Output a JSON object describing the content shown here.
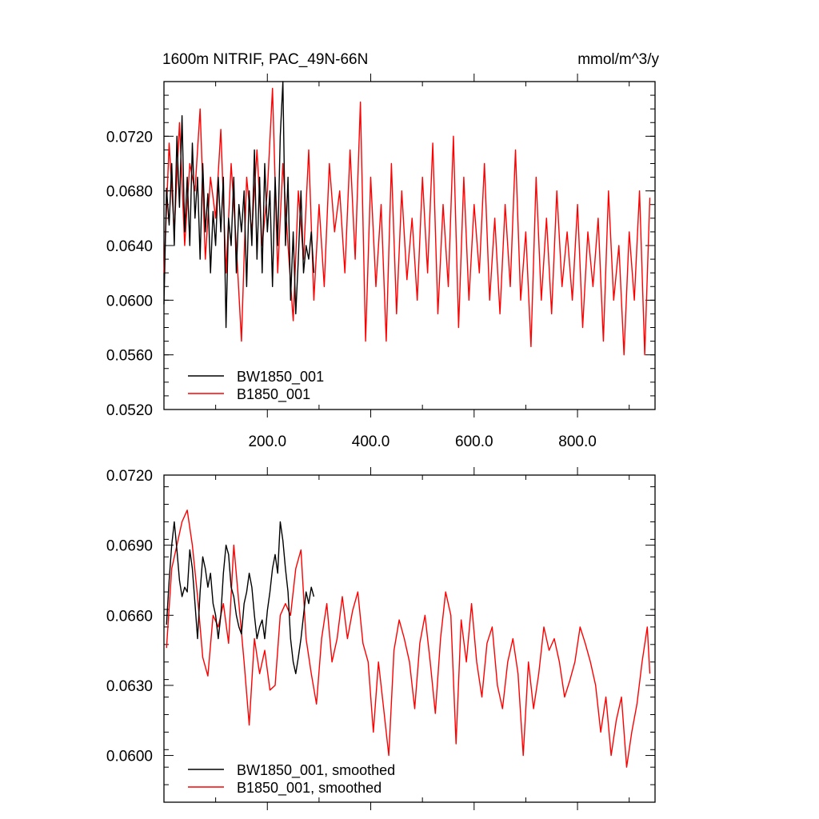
{
  "header": {
    "title": "1600m NITRIF, PAC_49N-66N",
    "units": "mmol/m^3/y"
  },
  "chart_data": [
    {
      "type": "line",
      "title": "1600m NITRIF, PAC_49N-66N",
      "units_label": "mmol/m^3/y",
      "xlabel": "",
      "ylabel": "",
      "xlim": [
        0,
        950
      ],
      "ylim": [
        0.052,
        0.076
      ],
      "x_tick_values": [
        200,
        400,
        600,
        800
      ],
      "x_tick_labels": [
        "200.0",
        "400.0",
        "600.0",
        "800.0"
      ],
      "y_tick_values": [
        0.052,
        0.056,
        0.06,
        0.064,
        0.068,
        0.072
      ],
      "y_tick_labels": [
        "0.0520",
        "0.0560",
        "0.0600",
        "0.0640",
        "0.0680",
        "0.0720"
      ],
      "legend_position": "bottom-left",
      "grid": false,
      "series": [
        {
          "name": "BW1850_001",
          "color": "#000000",
          "x": [
            0,
            5,
            10,
            15,
            20,
            25,
            30,
            35,
            40,
            45,
            50,
            55,
            60,
            65,
            70,
            75,
            80,
            85,
            90,
            95,
            100,
            105,
            110,
            115,
            120,
            125,
            130,
            135,
            140,
            145,
            150,
            155,
            160,
            165,
            170,
            175,
            180,
            185,
            190,
            195,
            200,
            205,
            210,
            215,
            220,
            225,
            230,
            235,
            240,
            245,
            250,
            255,
            260,
            265,
            270,
            275,
            280,
            285,
            290
          ],
          "values": [
            0.0597,
            0.0682,
            0.0655,
            0.07,
            0.064,
            0.072,
            0.0668,
            0.0735,
            0.065,
            0.069,
            0.064,
            0.0715,
            0.066,
            0.069,
            0.063,
            0.07,
            0.065,
            0.0678,
            0.062,
            0.0665,
            0.064,
            0.069,
            0.065,
            0.069,
            0.058,
            0.066,
            0.064,
            0.069,
            0.062,
            0.067,
            0.065,
            0.068,
            0.061,
            0.068,
            0.064,
            0.071,
            0.063,
            0.069,
            0.062,
            0.07,
            0.065,
            0.068,
            0.061,
            0.069,
            0.064,
            0.072,
            0.076,
            0.064,
            0.069,
            0.06,
            0.065,
            0.059,
            0.063,
            0.068,
            0.062,
            0.064,
            0.063,
            0.065,
            0.062
          ]
        },
        {
          "name": "B1850_001",
          "color": "#ff0000",
          "x": [
            0,
            10,
            20,
            30,
            40,
            50,
            60,
            70,
            80,
            90,
            100,
            110,
            120,
            130,
            140,
            150,
            160,
            170,
            180,
            190,
            200,
            210,
            220,
            230,
            240,
            250,
            260,
            270,
            280,
            290,
            300,
            310,
            320,
            330,
            340,
            350,
            360,
            370,
            380,
            390,
            400,
            410,
            420,
            430,
            440,
            450,
            460,
            470,
            480,
            490,
            500,
            510,
            520,
            530,
            540,
            550,
            560,
            570,
            580,
            590,
            600,
            610,
            620,
            630,
            640,
            650,
            660,
            670,
            680,
            690,
            700,
            710,
            720,
            730,
            740,
            750,
            760,
            770,
            780,
            790,
            800,
            810,
            820,
            830,
            840,
            850,
            860,
            870,
            880,
            890,
            900,
            910,
            920,
            930,
            940
          ],
          "values": [
            0.062,
            0.0715,
            0.065,
            0.073,
            0.064,
            0.07,
            0.068,
            0.074,
            0.063,
            0.069,
            0.066,
            0.0725,
            0.062,
            0.07,
            0.064,
            0.057,
            0.069,
            0.065,
            0.071,
            0.064,
            0.068,
            0.0755,
            0.062,
            0.07,
            0.064,
            0.0585,
            0.068,
            0.063,
            0.071,
            0.06,
            0.067,
            0.061,
            0.07,
            0.065,
            0.068,
            0.062,
            0.071,
            0.063,
            0.0745,
            0.057,
            0.069,
            0.061,
            0.067,
            0.057,
            0.07,
            0.059,
            0.068,
            0.0615,
            0.066,
            0.06,
            0.069,
            0.062,
            0.0715,
            0.059,
            0.067,
            0.061,
            0.072,
            0.058,
            0.069,
            0.06,
            0.067,
            0.062,
            0.07,
            0.06,
            0.066,
            0.059,
            0.067,
            0.061,
            0.071,
            0.06,
            0.065,
            0.0566,
            0.069,
            0.06,
            0.066,
            0.059,
            0.068,
            0.061,
            0.065,
            0.06,
            0.067,
            0.058,
            0.065,
            0.061,
            0.066,
            0.057,
            0.068,
            0.06,
            0.064,
            0.056,
            0.065,
            0.06,
            0.068,
            0.056,
            0.0675
          ]
        }
      ]
    },
    {
      "type": "line",
      "title": "",
      "xlabel": "",
      "ylabel": "",
      "xlim": [
        0,
        950
      ],
      "ylim": [
        0.058,
        0.072
      ],
      "y_tick_values": [
        0.06,
        0.063,
        0.066,
        0.069,
        0.072
      ],
      "y_tick_labels": [
        "0.0600",
        "0.0630",
        "0.0660",
        "0.0690",
        "0.0720"
      ],
      "legend_position": "bottom-left",
      "grid": false,
      "series": [
        {
          "name": "BW1850_001, smoothed",
          "color": "#000000",
          "x": [
            5,
            10,
            15,
            20,
            25,
            30,
            35,
            40,
            45,
            50,
            55,
            60,
            65,
            70,
            75,
            80,
            85,
            90,
            95,
            100,
            105,
            110,
            115,
            120,
            125,
            130,
            135,
            140,
            145,
            150,
            155,
            160,
            165,
            170,
            175,
            180,
            185,
            190,
            195,
            200,
            205,
            210,
            215,
            220,
            225,
            230,
            235,
            240,
            245,
            250,
            255,
            260,
            265,
            270,
            275,
            280,
            285,
            290
          ],
          "values": [
            0.0656,
            0.0675,
            0.069,
            0.07,
            0.0688,
            0.0675,
            0.0668,
            0.0672,
            0.067,
            0.0688,
            0.068,
            0.0665,
            0.065,
            0.067,
            0.0685,
            0.068,
            0.0672,
            0.0678,
            0.0665,
            0.066,
            0.065,
            0.066,
            0.0678,
            0.069,
            0.0686,
            0.0672,
            0.0668,
            0.066,
            0.0655,
            0.0652,
            0.0665,
            0.067,
            0.0678,
            0.0672,
            0.066,
            0.065,
            0.0655,
            0.0658,
            0.065,
            0.0662,
            0.067,
            0.068,
            0.0686,
            0.0678,
            0.07,
            0.0692,
            0.068,
            0.067,
            0.065,
            0.064,
            0.0635,
            0.0642,
            0.065,
            0.066,
            0.067,
            0.0665,
            0.0672,
            0.0668
          ]
        },
        {
          "name": "B1850_001, smoothed",
          "color": "#ff0000",
          "x": [
            5,
            15,
            25,
            35,
            45,
            55,
            65,
            75,
            85,
            95,
            105,
            115,
            125,
            135,
            145,
            155,
            165,
            175,
            185,
            195,
            205,
            215,
            225,
            235,
            245,
            255,
            265,
            275,
            285,
            295,
            305,
            315,
            325,
            335,
            345,
            355,
            365,
            375,
            385,
            395,
            405,
            415,
            425,
            435,
            445,
            455,
            465,
            475,
            485,
            495,
            505,
            515,
            525,
            535,
            545,
            555,
            565,
            575,
            585,
            595,
            605,
            615,
            625,
            635,
            645,
            655,
            665,
            675,
            685,
            695,
            705,
            715,
            725,
            735,
            745,
            755,
            765,
            775,
            785,
            795,
            805,
            815,
            825,
            835,
            845,
            855,
            865,
            875,
            885,
            895,
            905,
            915,
            925,
            935,
            940
          ],
          "values": [
            0.0646,
            0.068,
            0.069,
            0.07,
            0.0705,
            0.069,
            0.0668,
            0.0642,
            0.0634,
            0.066,
            0.0655,
            0.0665,
            0.0648,
            0.069,
            0.0665,
            0.064,
            0.0613,
            0.065,
            0.0635,
            0.0645,
            0.0628,
            0.063,
            0.066,
            0.0665,
            0.066,
            0.068,
            0.0688,
            0.065,
            0.0635,
            0.0622,
            0.065,
            0.0665,
            0.064,
            0.065,
            0.0668,
            0.065,
            0.0662,
            0.067,
            0.0648,
            0.064,
            0.061,
            0.064,
            0.062,
            0.06,
            0.0645,
            0.0658,
            0.065,
            0.064,
            0.062,
            0.0648,
            0.066,
            0.064,
            0.0618,
            0.065,
            0.067,
            0.066,
            0.0605,
            0.0658,
            0.064,
            0.0665,
            0.064,
            0.0625,
            0.0648,
            0.0655,
            0.063,
            0.062,
            0.064,
            0.065,
            0.0635,
            0.06,
            0.064,
            0.062,
            0.0635,
            0.0655,
            0.0645,
            0.065,
            0.064,
            0.0625,
            0.0632,
            0.064,
            0.0655,
            0.0648,
            0.064,
            0.063,
            0.061,
            0.0625,
            0.06,
            0.0615,
            0.0625,
            0.0595,
            0.061,
            0.0622,
            0.064,
            0.0655,
            0.0635
          ]
        }
      ]
    }
  ]
}
